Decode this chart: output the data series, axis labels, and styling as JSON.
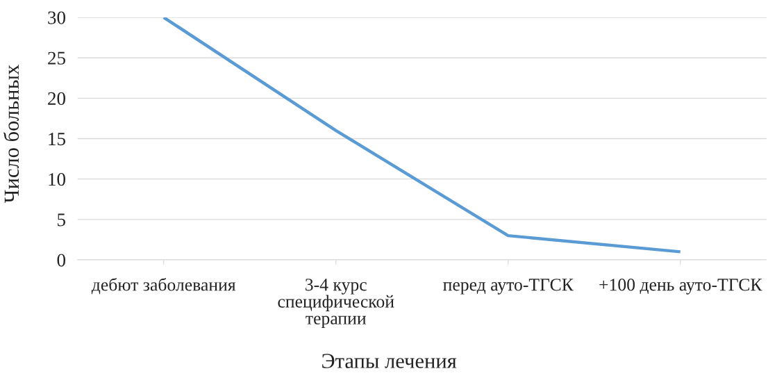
{
  "chart_data": {
    "type": "line",
    "xlabel": "Этапы лечения",
    "ylabel": "Число больных",
    "categories": [
      "дебют заболевания",
      "3-4 курс\nспецифической\nтерапии",
      "перед ауто-ТГСК",
      "+100 день ауто-ТГСК"
    ],
    "series": [
      {
        "color": "#5b9bd5",
        "values": [
          30,
          16,
          3,
          1
        ]
      }
    ],
    "ylim": [
      0,
      30
    ],
    "yticks": [
      0,
      5,
      10,
      15,
      20,
      25,
      30
    ],
    "grid": "y"
  }
}
